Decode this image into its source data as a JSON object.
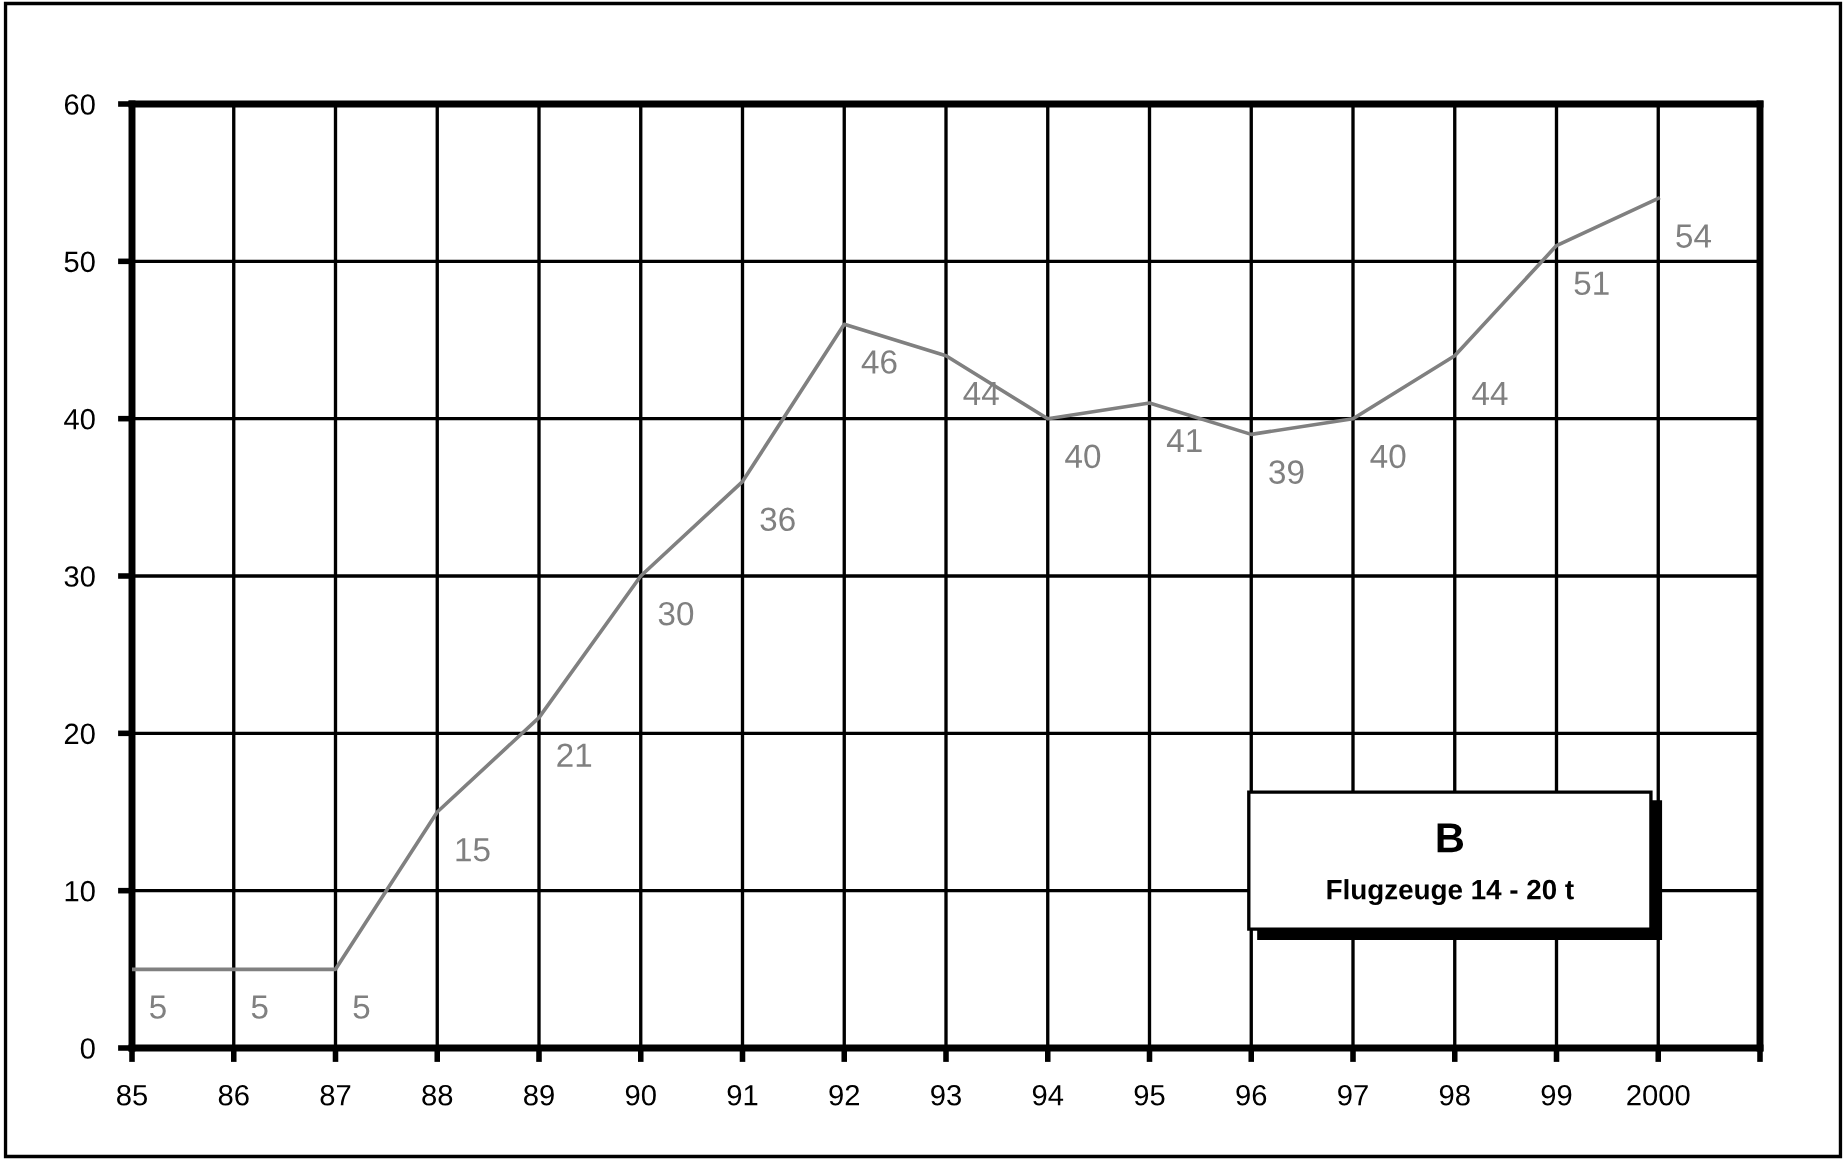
{
  "chart_data": {
    "type": "line",
    "x": [
      1985,
      1986,
      1987,
      1988,
      1989,
      1990,
      1991,
      1992,
      1993,
      1994,
      1995,
      1996,
      1997,
      1998,
      1999,
      2000
    ],
    "series": [
      {
        "color": "#808080",
        "values": [
          5,
          5,
          5,
          15,
          21,
          30,
          36,
          46,
          44,
          40,
          41,
          39,
          40,
          44,
          51,
          54
        ]
      }
    ],
    "xlim": [
      1985,
      2001
    ],
    "xticks": [
      {
        "value": 1985,
        "label": "85"
      },
      {
        "value": 1986,
        "label": "86"
      },
      {
        "value": 1987,
        "label": "87"
      },
      {
        "value": 1988,
        "label": "88"
      },
      {
        "value": 1989,
        "label": "89"
      },
      {
        "value": 1990,
        "label": "90"
      },
      {
        "value": 1991,
        "label": "91"
      },
      {
        "value": 1992,
        "label": "92"
      },
      {
        "value": 1993,
        "label": "93"
      },
      {
        "value": 1994,
        "label": "94"
      },
      {
        "value": 1995,
        "label": "95"
      },
      {
        "value": 1996,
        "label": "96"
      },
      {
        "value": 1997,
        "label": "97"
      },
      {
        "value": 1998,
        "label": "98"
      },
      {
        "value": 1999,
        "label": "99"
      },
      {
        "value": 2000,
        "label": "2000"
      },
      {
        "value": 2001,
        "label": null
      }
    ],
    "ylim": [
      0,
      60
    ],
    "yticks": [
      0,
      10,
      20,
      30,
      40,
      50,
      60
    ],
    "grid": true,
    "data_labels": true,
    "line_style": "solid",
    "marker": "none",
    "annotations": [
      "B",
      "Flugzeuge 14 - 20 t"
    ]
  }
}
